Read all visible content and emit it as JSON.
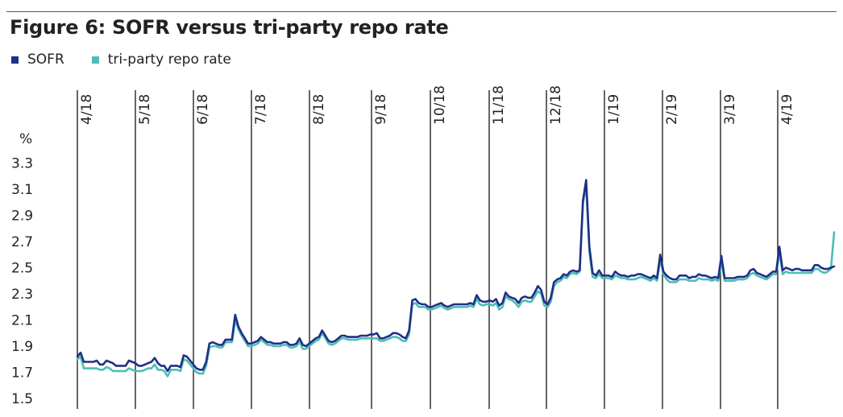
{
  "title": "Figure 6: SOFR versus tri-party repo rate",
  "colors": {
    "sofr": "#1f2f86",
    "triparty": "#4dbdb5",
    "divider": "#000000"
  },
  "chart_data": {
    "type": "line",
    "title": "Figure 6: SOFR versus tri-party repo rate",
    "ylabel": "%",
    "ylim": [
      1.5,
      3.4
    ],
    "yticks": [
      "3.3",
      "3.1",
      "2.9",
      "2.7",
      "2.5",
      "2.3",
      "2.1",
      "1.9",
      "1.7",
      "1.5"
    ],
    "month_labels": [
      "4/18",
      "5/18",
      "6/18",
      "7/18",
      "8/18",
      "9/18",
      "10/18",
      "11/18",
      "12/18",
      "1/19",
      "2/19",
      "3/19",
      "4/19"
    ],
    "grid": false,
    "legend_position": "top-left",
    "series": [
      {
        "name": "SOFR",
        "color": "#1f2f86",
        "values": [
          1.82,
          1.85,
          1.78,
          1.78,
          1.78,
          1.78,
          1.79,
          1.76,
          1.76,
          1.79,
          1.78,
          1.77,
          1.75,
          1.75,
          1.75,
          1.75,
          1.79,
          1.78,
          1.77,
          1.75,
          1.75,
          1.76,
          1.77,
          1.78,
          1.81,
          1.77,
          1.75,
          1.75,
          1.71,
          1.75,
          1.75,
          1.75,
          1.74,
          1.83,
          1.82,
          1.79,
          1.76,
          1.73,
          1.72,
          1.72,
          1.78,
          1.92,
          1.93,
          1.92,
          1.91,
          1.91,
          1.95,
          1.95,
          1.95,
          2.14,
          2.05,
          2.0,
          1.96,
          1.92,
          1.92,
          1.93,
          1.94,
          1.97,
          1.95,
          1.93,
          1.93,
          1.92,
          1.92,
          1.92,
          1.93,
          1.93,
          1.91,
          1.91,
          1.92,
          1.96,
          1.91,
          1.9,
          1.92,
          1.94,
          1.96,
          1.97,
          2.02,
          1.98,
          1.94,
          1.93,
          1.94,
          1.96,
          1.98,
          1.98,
          1.97,
          1.97,
          1.97,
          1.97,
          1.98,
          1.98,
          1.98,
          1.99,
          1.99,
          2.0,
          1.96,
          1.96,
          1.97,
          1.98,
          2.0,
          2.0,
          1.99,
          1.97,
          1.96,
          2.02,
          2.25,
          2.26,
          2.23,
          2.22,
          2.22,
          2.2,
          2.2,
          2.21,
          2.22,
          2.23,
          2.21,
          2.2,
          2.21,
          2.22,
          2.22,
          2.22,
          2.22,
          2.22,
          2.23,
          2.22,
          2.29,
          2.25,
          2.24,
          2.24,
          2.25,
          2.24,
          2.26,
          2.21,
          2.23,
          2.31,
          2.28,
          2.27,
          2.26,
          2.23,
          2.27,
          2.28,
          2.27,
          2.27,
          2.31,
          2.36,
          2.33,
          2.24,
          2.22,
          2.27,
          2.39,
          2.41,
          2.42,
          2.45,
          2.44,
          2.47,
          2.48,
          2.47,
          2.48,
          3.01,
          3.17,
          2.66,
          2.46,
          2.44,
          2.48,
          2.44,
          2.44,
          2.44,
          2.43,
          2.47,
          2.45,
          2.44,
          2.44,
          2.43,
          2.44,
          2.44,
          2.45,
          2.45,
          2.44,
          2.43,
          2.42,
          2.44,
          2.42,
          2.6,
          2.47,
          2.44,
          2.42,
          2.41,
          2.41,
          2.44,
          2.44,
          2.44,
          2.42,
          2.43,
          2.43,
          2.45,
          2.44,
          2.44,
          2.43,
          2.42,
          2.43,
          2.42,
          2.59,
          2.42,
          2.42,
          2.42,
          2.42,
          2.43,
          2.43,
          2.43,
          2.44,
          2.48,
          2.49,
          2.46,
          2.45,
          2.44,
          2.43,
          2.45,
          2.47,
          2.47,
          2.66,
          2.48,
          2.5,
          2.49,
          2.48,
          2.49,
          2.49,
          2.48,
          2.48,
          2.48,
          2.48,
          2.52,
          2.52,
          2.5,
          2.49,
          2.49,
          2.5,
          2.51
        ]
      },
      {
        "name": "tri-party repo rate",
        "color": "#4dbdb5",
        "values": [
          1.8,
          1.82,
          1.73,
          1.73,
          1.73,
          1.73,
          1.73,
          1.72,
          1.72,
          1.74,
          1.73,
          1.71,
          1.71,
          1.71,
          1.71,
          1.71,
          1.73,
          1.72,
          1.71,
          1.71,
          1.71,
          1.72,
          1.73,
          1.73,
          1.76,
          1.72,
          1.72,
          1.71,
          1.67,
          1.72,
          1.72,
          1.72,
          1.71,
          1.8,
          1.79,
          1.76,
          1.73,
          1.7,
          1.69,
          1.69,
          1.75,
          1.89,
          1.9,
          1.9,
          1.89,
          1.89,
          1.93,
          1.93,
          1.93,
          2.1,
          2.03,
          1.98,
          1.94,
          1.9,
          1.9,
          1.91,
          1.92,
          1.95,
          1.93,
          1.91,
          1.91,
          1.9,
          1.9,
          1.9,
          1.91,
          1.91,
          1.89,
          1.89,
          1.9,
          1.93,
          1.88,
          1.88,
          1.9,
          1.92,
          1.94,
          1.95,
          2.0,
          1.96,
          1.92,
          1.91,
          1.92,
          1.94,
          1.96,
          1.96,
          1.95,
          1.95,
          1.95,
          1.95,
          1.96,
          1.96,
          1.96,
          1.96,
          1.96,
          1.96,
          1.94,
          1.94,
          1.95,
          1.96,
          1.97,
          1.97,
          1.96,
          1.94,
          1.94,
          1.99,
          2.22,
          2.23,
          2.2,
          2.2,
          2.2,
          2.18,
          2.18,
          2.19,
          2.2,
          2.21,
          2.19,
          2.18,
          2.19,
          2.2,
          2.2,
          2.2,
          2.2,
          2.2,
          2.21,
          2.2,
          2.26,
          2.22,
          2.21,
          2.22,
          2.22,
          2.21,
          2.23,
          2.18,
          2.2,
          2.28,
          2.26,
          2.25,
          2.23,
          2.2,
          2.24,
          2.25,
          2.24,
          2.24,
          2.28,
          2.32,
          2.3,
          2.21,
          2.2,
          2.24,
          2.36,
          2.39,
          2.4,
          2.43,
          2.42,
          2.45,
          2.46,
          2.45,
          2.47,
          2.99,
          3.13,
          2.62,
          2.43,
          2.42,
          2.45,
          2.42,
          2.42,
          2.42,
          2.41,
          2.44,
          2.43,
          2.42,
          2.42,
          2.41,
          2.41,
          2.41,
          2.42,
          2.43,
          2.42,
          2.41,
          2.4,
          2.42,
          2.4,
          2.56,
          2.45,
          2.41,
          2.39,
          2.39,
          2.39,
          2.41,
          2.41,
          2.41,
          2.4,
          2.4,
          2.4,
          2.42,
          2.41,
          2.41,
          2.41,
          2.4,
          2.41,
          2.4,
          2.55,
          2.4,
          2.4,
          2.4,
          2.4,
          2.41,
          2.41,
          2.41,
          2.42,
          2.45,
          2.46,
          2.44,
          2.43,
          2.42,
          2.41,
          2.43,
          2.45,
          2.45,
          2.62,
          2.45,
          2.47,
          2.46,
          2.46,
          2.46,
          2.46,
          2.46,
          2.46,
          2.46,
          2.46,
          2.49,
          2.49,
          2.47,
          2.46,
          2.47,
          2.49,
          2.77
        ]
      }
    ]
  }
}
